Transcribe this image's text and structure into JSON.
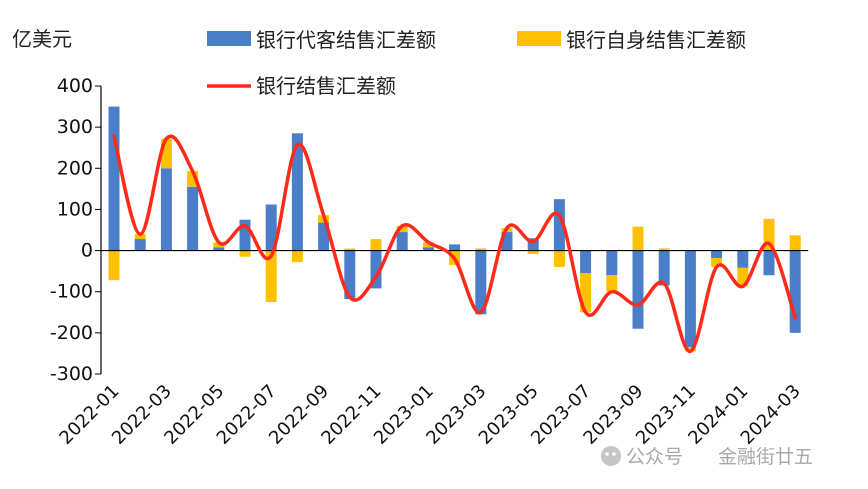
{
  "chart_data": {
    "type": "bar",
    "unit_label": "亿美元",
    "ylim": [
      -300,
      400
    ],
    "yticks": [
      400,
      300,
      200,
      100,
      0,
      -100,
      -200,
      -300
    ],
    "x_tick_labels": [
      "2022-01",
      "2022-03",
      "2022-05",
      "2022-07",
      "2022-09",
      "2022-11",
      "2023-01",
      "2023-03",
      "2023-05",
      "2023-07",
      "2023-09",
      "2023-11",
      "2024-01",
      "2024-03"
    ],
    "categories": [
      "2022-01",
      "2022-02",
      "2022-03",
      "2022-04",
      "2022-05",
      "2022-06",
      "2022-07",
      "2022-08",
      "2022-09",
      "2022-10",
      "2022-11",
      "2022-12",
      "2023-01",
      "2023-02",
      "2023-03",
      "2023-04",
      "2023-05",
      "2023-06",
      "2023-07",
      "2023-08",
      "2023-09",
      "2023-10",
      "2023-11",
      "2023-12",
      "2024-01",
      "2024-02",
      "2024-03"
    ],
    "series": [
      {
        "name": "银行代客结售汇差额",
        "kind": "bar",
        "color": "#4a7ec9",
        "values": [
          350,
          28,
          200,
          155,
          8,
          75,
          112,
          285,
          68,
          -118,
          -92,
          45,
          8,
          15,
          -155,
          45,
          30,
          125,
          -55,
          -60,
          -190,
          -85,
          -235,
          -18,
          -42,
          -60,
          -200
        ]
      },
      {
        "name": "银行自身结售汇差额",
        "kind": "bar",
        "color": "#ffc000",
        "values": [
          -72,
          12,
          72,
          38,
          12,
          -15,
          -125,
          -28,
          18,
          5,
          28,
          15,
          12,
          -35,
          5,
          10,
          -8,
          -40,
          -95,
          -40,
          58,
          5,
          -10,
          -22,
          -45,
          77,
          37
        ]
      },
      {
        "name": "银行结售汇差额",
        "kind": "line",
        "color": "#ff2a1a",
        "values": [
          278,
          40,
          272,
          193,
          20,
          60,
          -13,
          257,
          86,
          -113,
          -64,
          60,
          20,
          -20,
          -150,
          55,
          22,
          85,
          -150,
          -100,
          -132,
          -80,
          -245,
          -40,
          -87,
          17,
          -163
        ]
      }
    ]
  },
  "watermark": {
    "account_prefix": "公众号",
    "account_name": "金融街廿五"
  }
}
